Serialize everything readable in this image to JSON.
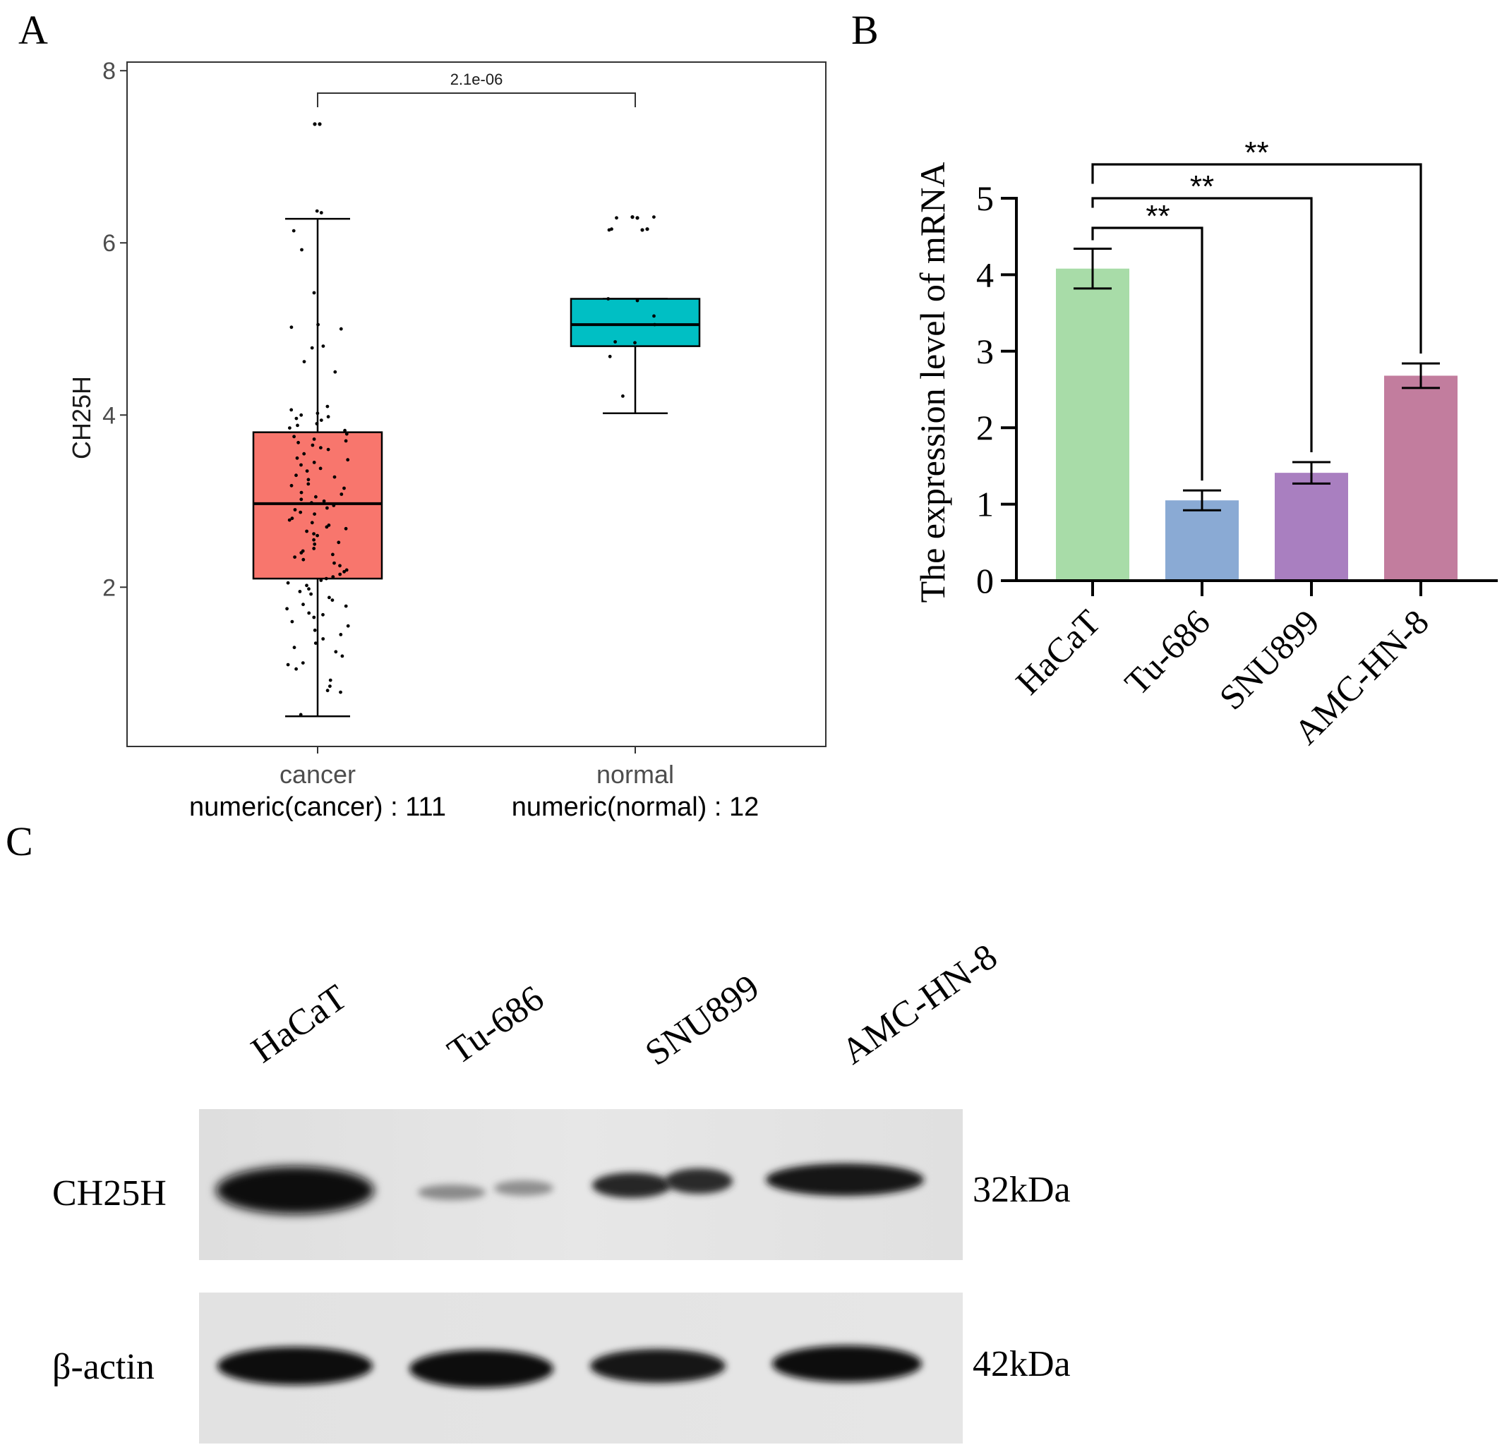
{
  "panels": {
    "a": "A",
    "b": "B",
    "c": "C"
  },
  "chart_data": [
    {
      "panel": "A",
      "type": "box",
      "title": "",
      "xlabel": "",
      "ylabel": "CH25H",
      "ylim": [
        0.15,
        8.1
      ],
      "yticks": [
        "2",
        "4",
        "6",
        "8"
      ],
      "grid": false,
      "legend": "none",
      "categories": [
        "cancer",
        "normal"
      ],
      "category_notes": [
        "numeric(cancer) : 111",
        "numeric(normal) : 12"
      ],
      "boxes": [
        {
          "category": "cancer",
          "min": 0.5,
          "q1": 2.1,
          "median": 2.97,
          "q3": 3.8,
          "max": 6.28,
          "outliers": [
            7.38,
            7.38
          ],
          "color": "#F8766D"
        },
        {
          "category": "normal",
          "min": 4.02,
          "q1": 4.8,
          "median": 5.05,
          "q3": 5.35,
          "max": 5.35,
          "outliers": [
            6.3,
            6.29,
            6.15,
            6.16
          ],
          "color": "#00BFC4"
        }
      ],
      "points": [
        {
          "category": "cancer",
          "values": [
            6.37,
            6.35,
            6.14,
            5.92,
            5.42,
            5.05,
            5.02,
            5.0,
            4.8,
            4.78,
            4.62,
            4.5,
            4.1,
            4.06,
            4.02,
            4.0,
            3.98,
            3.96,
            3.94,
            3.9,
            3.88,
            3.85,
            3.82,
            3.78,
            3.75,
            3.72,
            3.7,
            3.68,
            3.65,
            3.62,
            3.6,
            3.55,
            3.5,
            3.48,
            3.45,
            3.42,
            3.38,
            3.35,
            3.3,
            3.28,
            3.25,
            3.2,
            3.18,
            3.15,
            3.1,
            3.08,
            3.05,
            3.02,
            3.0,
            2.98,
            2.95,
            2.92,
            2.9,
            2.87,
            2.85,
            2.8,
            2.78,
            2.75,
            2.72,
            2.7,
            2.68,
            2.65,
            2.62,
            2.6,
            2.55,
            2.52,
            2.5,
            2.45,
            2.42,
            2.4,
            2.38,
            2.35,
            2.32,
            2.28,
            2.25,
            2.2,
            2.18,
            2.15,
            2.12,
            2.1,
            2.08,
            2.05,
            2.02,
            1.98,
            1.95,
            1.92,
            1.88,
            1.85,
            1.8,
            1.78,
            1.75,
            1.7,
            1.68,
            1.65,
            1.6,
            1.55,
            1.5,
            1.45,
            1.4,
            1.35,
            1.3,
            1.25,
            1.2,
            1.12,
            1.1,
            1.05,
            0.92,
            0.85,
            0.8,
            0.78,
            0.52
          ]
        },
        {
          "category": "normal",
          "values": [
            6.3,
            6.29,
            6.15,
            6.16,
            5.35,
            5.33,
            5.15,
            5.05,
            4.85,
            4.84,
            4.68,
            4.22
          ]
        }
      ],
      "comparison": {
        "from": "cancer",
        "to": "normal",
        "label": "2.1e-06"
      }
    },
    {
      "panel": "B",
      "type": "bar",
      "title": "",
      "xlabel": "",
      "ylabel": "The expression level of mRNA",
      "ylim": [
        0,
        5
      ],
      "yticks": [
        "0",
        "1",
        "2",
        "3",
        "4",
        "5"
      ],
      "grid": false,
      "legend": "none",
      "categories": [
        "HaCaT",
        "Tu-686",
        "SNU899",
        "AMC-HN-8"
      ],
      "values": [
        4.08,
        1.05,
        1.41,
        2.68
      ],
      "errors": [
        0.26,
        0.13,
        0.14,
        0.16
      ],
      "colors": [
        "#A8DCA8",
        "#8AAAD4",
        "#A97FC0",
        "#C27D9E"
      ],
      "significance": [
        {
          "from": "HaCaT",
          "to": "Tu-686",
          "label": "**"
        },
        {
          "from": "HaCaT",
          "to": "SNU899",
          "label": "**"
        },
        {
          "from": "HaCaT",
          "to": "AMC-HN-8",
          "label": "**"
        }
      ]
    }
  ],
  "western_blot": {
    "lanes": [
      "HaCaT",
      "Tu-686",
      "SNU899",
      "AMC-HN-8"
    ],
    "rows": [
      {
        "protein": "CH25H",
        "size": "32kDa"
      },
      {
        "protein": "β-actin",
        "size": "42kDa"
      }
    ]
  }
}
